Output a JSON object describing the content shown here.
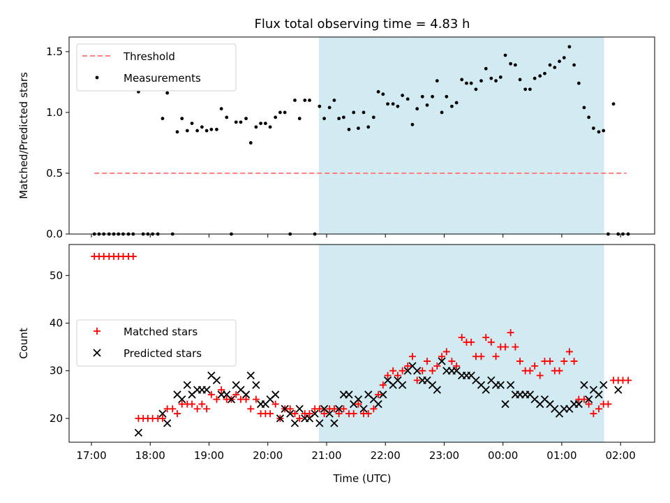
{
  "chart_data": {
    "type": "scatter",
    "title": "Flux total observing time = 4.83 h",
    "xlabel": "Time (UTC)",
    "x_ticks": [
      "17:00",
      "18:00",
      "19:00",
      "20:00",
      "21:00",
      "22:00",
      "23:00",
      "00:00",
      "01:00",
      "02:00"
    ],
    "xlim_hours": [
      16.62,
      26.58
    ],
    "shaded_span_hours": [
      20.87,
      25.72
    ],
    "colors": {
      "shade": "#add8e6",
      "threshold": "#ff7f7f",
      "matched": "#ff0000",
      "predicted": "#000000"
    },
    "panels": [
      {
        "ylabel": "Matched/Predicted stars",
        "ylim": [
          0,
          1.62
        ],
        "yticks": [
          0.0,
          0.5,
          1.0,
          1.5
        ],
        "legend": {
          "position": "upper-left",
          "entries": [
            "Threshold",
            "Measurements"
          ]
        },
        "threshold": {
          "name": "Threshold",
          "value": 0.5,
          "x_range": [
            17.05,
            26.1
          ]
        },
        "series": [
          {
            "name": "Measurements",
            "x": [
              17.05,
              17.13,
              17.21,
              17.3,
              17.38,
              17.46,
              17.54,
              17.63,
              17.71,
              17.8,
              17.88,
              17.96,
              18.04,
              18.13,
              18.21,
              18.29,
              18.38,
              18.46,
              18.54,
              18.63,
              18.71,
              18.8,
              18.88,
              18.96,
              19.04,
              19.13,
              19.21,
              19.3,
              19.38,
              19.46,
              19.54,
              19.63,
              19.71,
              19.8,
              19.88,
              19.96,
              20.04,
              20.13,
              20.21,
              20.29,
              20.38,
              20.46,
              20.54,
              20.63,
              20.71,
              20.8,
              20.88,
              20.96,
              21.05,
              21.13,
              21.21,
              21.29,
              21.38,
              21.46,
              21.54,
              21.63,
              21.71,
              21.8,
              21.88,
              21.96,
              22.04,
              22.13,
              22.21,
              22.29,
              22.38,
              22.46,
              22.54,
              22.63,
              22.71,
              22.8,
              22.88,
              22.96,
              23.04,
              23.13,
              23.21,
              23.3,
              23.38,
              23.46,
              23.54,
              23.63,
              23.71,
              23.8,
              23.88,
              23.96,
              24.04,
              24.13,
              24.21,
              24.29,
              24.38,
              24.46,
              24.54,
              24.63,
              24.71,
              24.8,
              24.88,
              24.96,
              25.04,
              25.13,
              25.21,
              25.29,
              25.38,
              25.46,
              25.54,
              25.63,
              25.71,
              25.79,
              25.88,
              25.96,
              26.04,
              26.13
            ],
            "y": [
              0.0,
              0.0,
              0.0,
              0.0,
              0.0,
              0.0,
              0.0,
              0.0,
              0.0,
              1.17,
              0.0,
              0.0,
              0.0,
              0.0,
              0.95,
              1.16,
              0.0,
              0.84,
              0.95,
              0.85,
              0.91,
              0.85,
              0.88,
              0.85,
              0.86,
              0.86,
              1.03,
              0.96,
              0.0,
              0.92,
              0.92,
              0.95,
              0.75,
              0.88,
              0.91,
              0.91,
              0.88,
              0.96,
              1.0,
              1.0,
              0.0,
              1.1,
              0.95,
              1.1,
              1.1,
              0.0,
              1.05,
              0.95,
              1.04,
              1.1,
              0.95,
              0.96,
              0.86,
              1.0,
              0.87,
              1.0,
              0.88,
              0.96,
              1.17,
              1.15,
              1.07,
              1.07,
              1.05,
              1.14,
              1.11,
              0.9,
              1.03,
              1.13,
              1.06,
              1.13,
              1.26,
              1.0,
              1.13,
              1.05,
              1.08,
              1.27,
              1.24,
              1.24,
              1.19,
              1.26,
              1.36,
              1.28,
              1.26,
              1.29,
              1.47,
              1.4,
              1.39,
              1.27,
              1.19,
              1.19,
              1.28,
              1.3,
              1.32,
              1.39,
              1.37,
              1.42,
              1.45,
              1.54,
              1.39,
              1.24,
              1.04,
              0.96,
              0.87,
              0.84,
              0.85,
              0.0,
              1.07,
              0.0,
              0.0,
              0.0
            ]
          }
        ]
      },
      {
        "ylabel": "Count",
        "ylim": [
          15,
          56.5
        ],
        "yticks": [
          20,
          30,
          40,
          50
        ],
        "legend": {
          "position": "center-left",
          "entries": [
            "Matched stars",
            "Predicted stars"
          ]
        },
        "series": [
          {
            "name": "Matched stars",
            "marker": "+",
            "x": [
              17.05,
              17.13,
              17.21,
              17.3,
              17.38,
              17.46,
              17.54,
              17.63,
              17.71,
              17.8,
              17.88,
              17.96,
              18.04,
              18.13,
              18.21,
              18.29,
              18.38,
              18.46,
              18.54,
              18.63,
              18.71,
              18.8,
              18.88,
              18.96,
              19.04,
              19.13,
              19.21,
              19.3,
              19.38,
              19.46,
              19.54,
              19.63,
              19.71,
              19.8,
              19.88,
              19.96,
              20.04,
              20.13,
              20.21,
              20.29,
              20.38,
              20.46,
              20.54,
              20.63,
              20.71,
              20.8,
              20.88,
              20.96,
              21.05,
              21.13,
              21.21,
              21.29,
              21.38,
              21.46,
              21.54,
              21.63,
              21.71,
              21.8,
              21.88,
              21.96,
              22.04,
              22.13,
              22.21,
              22.29,
              22.38,
              22.46,
              22.54,
              22.63,
              22.71,
              22.8,
              22.88,
              22.96,
              23.04,
              23.13,
              23.21,
              23.3,
              23.38,
              23.46,
              23.54,
              23.63,
              23.71,
              23.8,
              23.88,
              23.96,
              24.04,
              24.13,
              24.21,
              24.29,
              24.38,
              24.46,
              24.54,
              24.63,
              24.71,
              24.8,
              24.88,
              24.96,
              25.04,
              25.13,
              25.21,
              25.29,
              25.38,
              25.46,
              25.54,
              25.63,
              25.71,
              25.79,
              25.88,
              25.96,
              26.04,
              26.13
            ],
            "y": [
              54,
              54,
              54,
              54,
              54,
              54,
              54,
              54,
              54,
              20,
              20,
              20,
              20,
              20,
              20,
              22,
              22,
              21,
              23,
              23,
              23,
              22,
              23,
              22,
              25,
              24,
              26,
              24,
              24,
              25,
              24,
              24,
              22,
              24,
              21,
              21,
              21,
              23,
              20,
              22,
              22,
              21,
              20,
              21,
              21,
              22,
              22,
              21,
              22,
              22,
              21,
              22,
              21,
              21,
              23,
              21,
              21,
              22,
              25,
              27,
              29,
              30,
              29,
              30,
              31,
              33,
              28,
              30,
              32,
              30,
              31,
              33,
              34,
              32,
              31,
              37,
              36,
              36,
              33,
              33,
              37,
              36,
              33,
              35,
              35,
              38,
              35,
              32,
              30,
              30,
              31,
              29,
              32,
              32,
              30,
              30,
              32,
              34,
              32,
              24,
              24,
              23,
              21,
              22,
              23,
              23,
              28,
              28,
              28,
              28
            ]
          },
          {
            "name": "Predicted stars",
            "marker": "x",
            "x": [
              17.8,
              18.21,
              18.29,
              18.46,
              18.54,
              18.63,
              18.71,
              18.8,
              18.88,
              18.96,
              19.04,
              19.13,
              19.21,
              19.3,
              19.38,
              19.46,
              19.54,
              19.63,
              19.71,
              19.8,
              19.88,
              19.96,
              20.04,
              20.13,
              20.21,
              20.29,
              20.38,
              20.46,
              20.54,
              20.63,
              20.71,
              20.8,
              20.88,
              20.96,
              21.05,
              21.13,
              21.21,
              21.29,
              21.38,
              21.46,
              21.54,
              21.63,
              21.71,
              21.8,
              21.88,
              21.96,
              22.04,
              22.13,
              22.21,
              22.29,
              22.38,
              22.46,
              22.54,
              22.63,
              22.71,
              22.8,
              22.88,
              22.96,
              23.04,
              23.13,
              23.21,
              23.3,
              23.38,
              23.46,
              23.54,
              23.63,
              23.71,
              23.8,
              23.88,
              23.96,
              24.04,
              24.13,
              24.21,
              24.29,
              24.38,
              24.46,
              24.54,
              24.63,
              24.71,
              24.8,
              24.88,
              24.96,
              25.04,
              25.13,
              25.21,
              25.29,
              25.38,
              25.46,
              25.54,
              25.63,
              25.71,
              25.96
            ],
            "y": [
              17,
              21,
              19,
              25,
              24,
              27,
              25,
              26,
              26,
              26,
              29,
              28,
              25,
              25,
              24,
              27,
              26,
              25,
              29,
              27,
              23,
              23,
              24,
              25,
              20,
              22,
              21,
              19,
              22,
              20,
              20,
              21,
              19,
              22,
              21,
              19,
              22,
              25,
              25,
              23,
              24,
              22,
              25,
              24,
              23,
              25,
              28,
              27,
              28,
              27,
              30,
              31,
              30,
              28,
              28,
              27,
              26,
              32,
              30,
              30,
              30,
              29,
              29,
              29,
              28,
              27,
              26,
              28,
              27,
              27,
              23,
              27,
              25,
              25,
              25,
              25,
              24,
              23,
              24,
              23,
              22,
              21,
              22,
              22,
              23,
              23,
              27,
              24,
              26,
              25,
              27,
              26
            ]
          }
        ]
      }
    ]
  }
}
